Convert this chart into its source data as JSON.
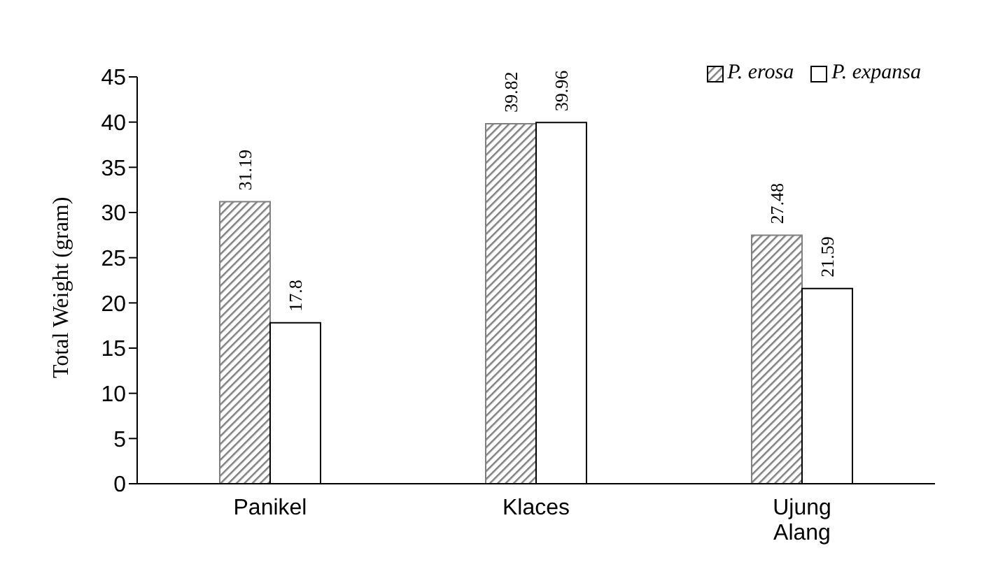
{
  "chart_data": {
    "type": "bar",
    "ylabel": "Total Weight (gram)",
    "categories": [
      "Panikel",
      "Klaces",
      "Ujung Alang"
    ],
    "series": [
      {
        "name": "P. erosa",
        "color": "#808080",
        "values": [
          31.19,
          39.82,
          27.48
        ]
      },
      {
        "name": "P. expansa",
        "color": "#ffffff",
        "values": [
          17.8,
          39.96,
          21.59
        ]
      }
    ],
    "ylim": [
      0,
      45
    ],
    "yticks": [
      0,
      5,
      10,
      15,
      20,
      25,
      30,
      35,
      40,
      45
    ],
    "grid": false,
    "legend": "top right",
    "data_labels": true
  }
}
